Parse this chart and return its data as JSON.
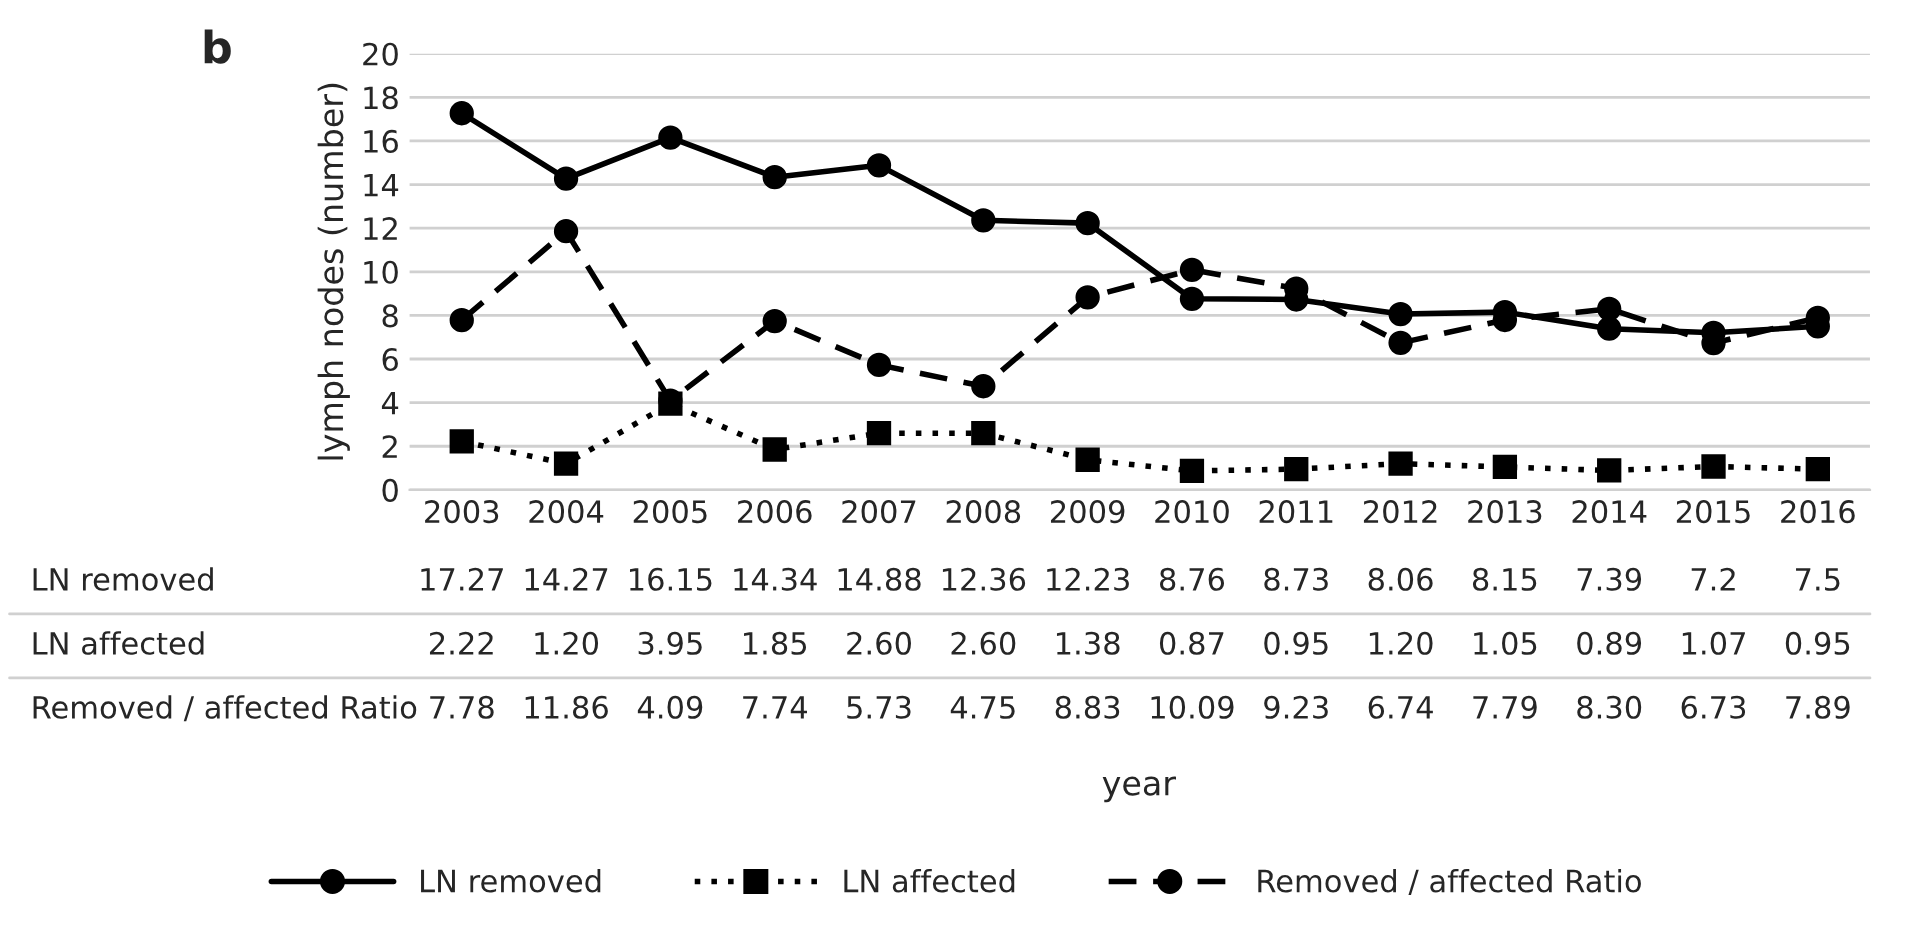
{
  "chart_data": {
    "type": "line",
    "ylabel": "lymph nodes (number)",
    "annotations": [
      "b",
      "year"
    ],
    "categories": [
      "2003",
      "2004",
      "2005",
      "2006",
      "2007",
      "2008",
      "2009",
      "2010",
      "2011",
      "2012",
      "2013",
      "2014",
      "2015",
      "2016"
    ],
    "ylim": [
      0,
      20
    ],
    "yticks": [
      0,
      2,
      4,
      6,
      8,
      10,
      12,
      14,
      16,
      18,
      20
    ],
    "grid": "y",
    "legend": "bottom",
    "series": [
      {
        "name": "LN removed",
        "color": "#000000",
        "marker": "circle",
        "line_style": "solid",
        "values": [
          17.27,
          14.27,
          16.15,
          14.34,
          14.88,
          12.36,
          12.23,
          8.76,
          8.73,
          8.06,
          8.15,
          7.39,
          7.2,
          7.5
        ],
        "value_labels": [
          "17.27",
          "14.27",
          "16.15",
          "14.34",
          "14.88",
          "12.36",
          "12.23",
          "8.76",
          "8.73",
          "8.06",
          "8.15",
          "7.39",
          "7.2",
          "7.5"
        ]
      },
      {
        "name": "LN affected",
        "color": "#000000",
        "marker": "square",
        "line_style": "dotted",
        "values": [
          2.22,
          1.2,
          3.95,
          1.85,
          2.6,
          2.6,
          1.38,
          0.87,
          0.95,
          1.2,
          1.05,
          0.89,
          1.07,
          0.95
        ],
        "value_labels": [
          "2.22",
          "1.20",
          "3.95",
          "1.85",
          "2.60",
          "2.60",
          "1.38",
          "0.87",
          "0.95",
          "1.20",
          "1.05",
          "0.89",
          "1.07",
          "0.95"
        ]
      },
      {
        "name": "Removed / affected Ratio",
        "color": "#000000",
        "marker": "circle",
        "line_style": "dashed",
        "values": [
          7.78,
          11.86,
          4.09,
          7.74,
          5.73,
          4.75,
          8.83,
          10.09,
          9.23,
          6.74,
          7.79,
          8.3,
          6.73,
          7.89
        ],
        "value_labels": [
          "7.78",
          "11.86",
          "4.09",
          "7.74",
          "5.73",
          "4.75",
          "8.83",
          "10.09",
          "9.23",
          "6.74",
          "7.79",
          "8.30",
          "6.73",
          "7.89"
        ]
      }
    ]
  }
}
